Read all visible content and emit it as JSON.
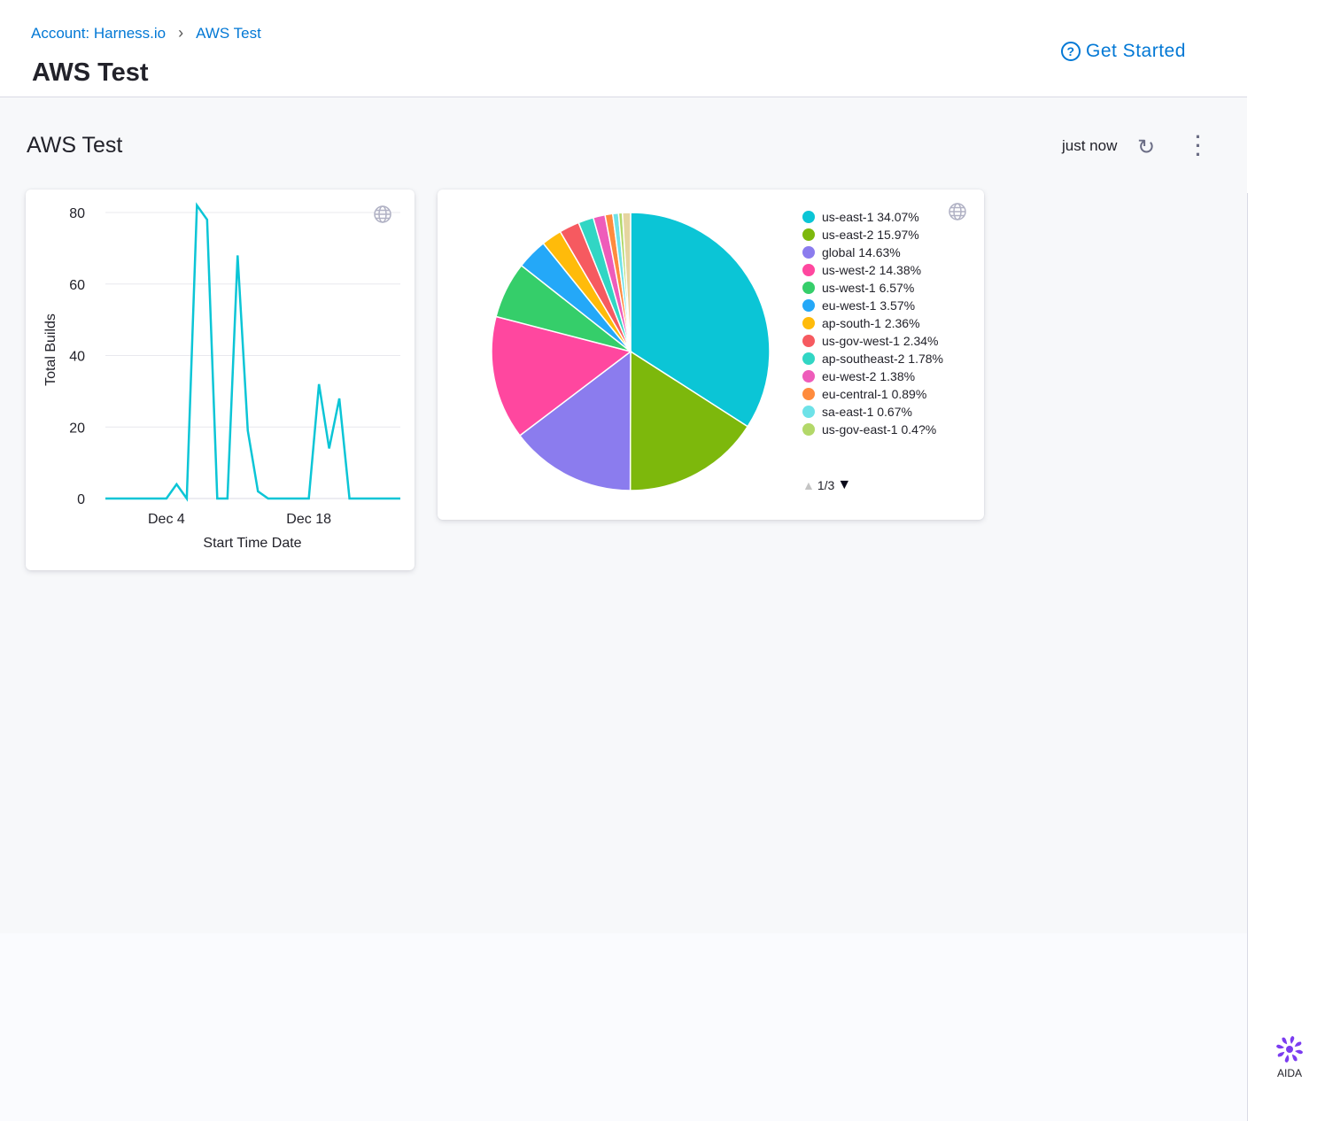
{
  "breadcrumb": {
    "account": "Account: Harness.io",
    "current": "AWS Test"
  },
  "header": {
    "title": "AWS Test",
    "get_started": "Get Started"
  },
  "dashboard": {
    "title": "AWS Test",
    "updated": "just now"
  },
  "colors": {
    "accent": "#0278d5",
    "line": "#0bc5d6"
  },
  "aida": {
    "label": "AIDA"
  },
  "chart_data": [
    {
      "type": "line",
      "xlabel": "Start Time Date",
      "ylabel": "Total Builds",
      "ylim": [
        0,
        80
      ],
      "yticks": [
        0,
        20,
        40,
        60,
        80
      ],
      "xtick_labels": [
        "Dec 4",
        "Dec 18"
      ],
      "grid": true,
      "x": [
        "Nov 28",
        "Nov 29",
        "Nov 30",
        "Dec 1",
        "Dec 2",
        "Dec 3",
        "Dec 4",
        "Dec 5",
        "Dec 6",
        "Dec 7",
        "Dec 8",
        "Dec 9",
        "Dec 10",
        "Dec 11",
        "Dec 12",
        "Dec 13",
        "Dec 14",
        "Dec 15",
        "Dec 16",
        "Dec 17",
        "Dec 18",
        "Dec 19",
        "Dec 20",
        "Dec 21",
        "Dec 22",
        "Dec 23",
        "Dec 24",
        "Dec 25",
        "Dec 26",
        "Dec 27"
      ],
      "values": [
        0,
        0,
        0,
        0,
        0,
        0,
        0,
        4,
        0,
        82,
        78,
        0,
        0,
        68,
        19,
        2,
        0,
        0,
        0,
        0,
        0,
        32,
        14,
        28,
        0,
        0,
        0,
        0,
        0,
        0
      ]
    },
    {
      "type": "pie",
      "legend": "right",
      "page": "1/3",
      "slices": [
        {
          "label": "us-east-1",
          "pct_label": "34.07%",
          "value": 34.07,
          "color": "#0bc5d6"
        },
        {
          "label": "us-east-2",
          "pct_label": "15.97%",
          "value": 15.97,
          "color": "#7db80c"
        },
        {
          "label": "global",
          "pct_label": "14.63%",
          "value": 14.63,
          "color": "#8b7cee"
        },
        {
          "label": "us-west-2",
          "pct_label": "14.38%",
          "value": 14.38,
          "color": "#ff479f"
        },
        {
          "label": "us-west-1",
          "pct_label": "6.57%",
          "value": 6.57,
          "color": "#35ce6a"
        },
        {
          "label": "eu-west-1",
          "pct_label": "3.57%",
          "value": 3.57,
          "color": "#24a8f8"
        },
        {
          "label": "ap-south-1",
          "pct_label": "2.36%",
          "value": 2.36,
          "color": "#ffbb0a"
        },
        {
          "label": "us-gov-west-1",
          "pct_label": "2.34%",
          "value": 2.34,
          "color": "#f65a60"
        },
        {
          "label": "ap-southeast-2",
          "pct_label": "1.78%",
          "value": 1.78,
          "color": "#31d6c4"
        },
        {
          "label": "eu-west-2",
          "pct_label": "1.38%",
          "value": 1.38,
          "color": "#ee5cba"
        },
        {
          "label": "eu-central-1",
          "pct_label": "0.89%",
          "value": 0.89,
          "color": "#ff8b3d"
        },
        {
          "label": "sa-east-1",
          "pct_label": "0.67%",
          "value": 0.67,
          "color": "#6ee2e8"
        },
        {
          "label": "us-gov-east-1",
          "pct_label": "0.4?%",
          "value": 0.45,
          "color": "#b3d869"
        }
      ]
    }
  ]
}
